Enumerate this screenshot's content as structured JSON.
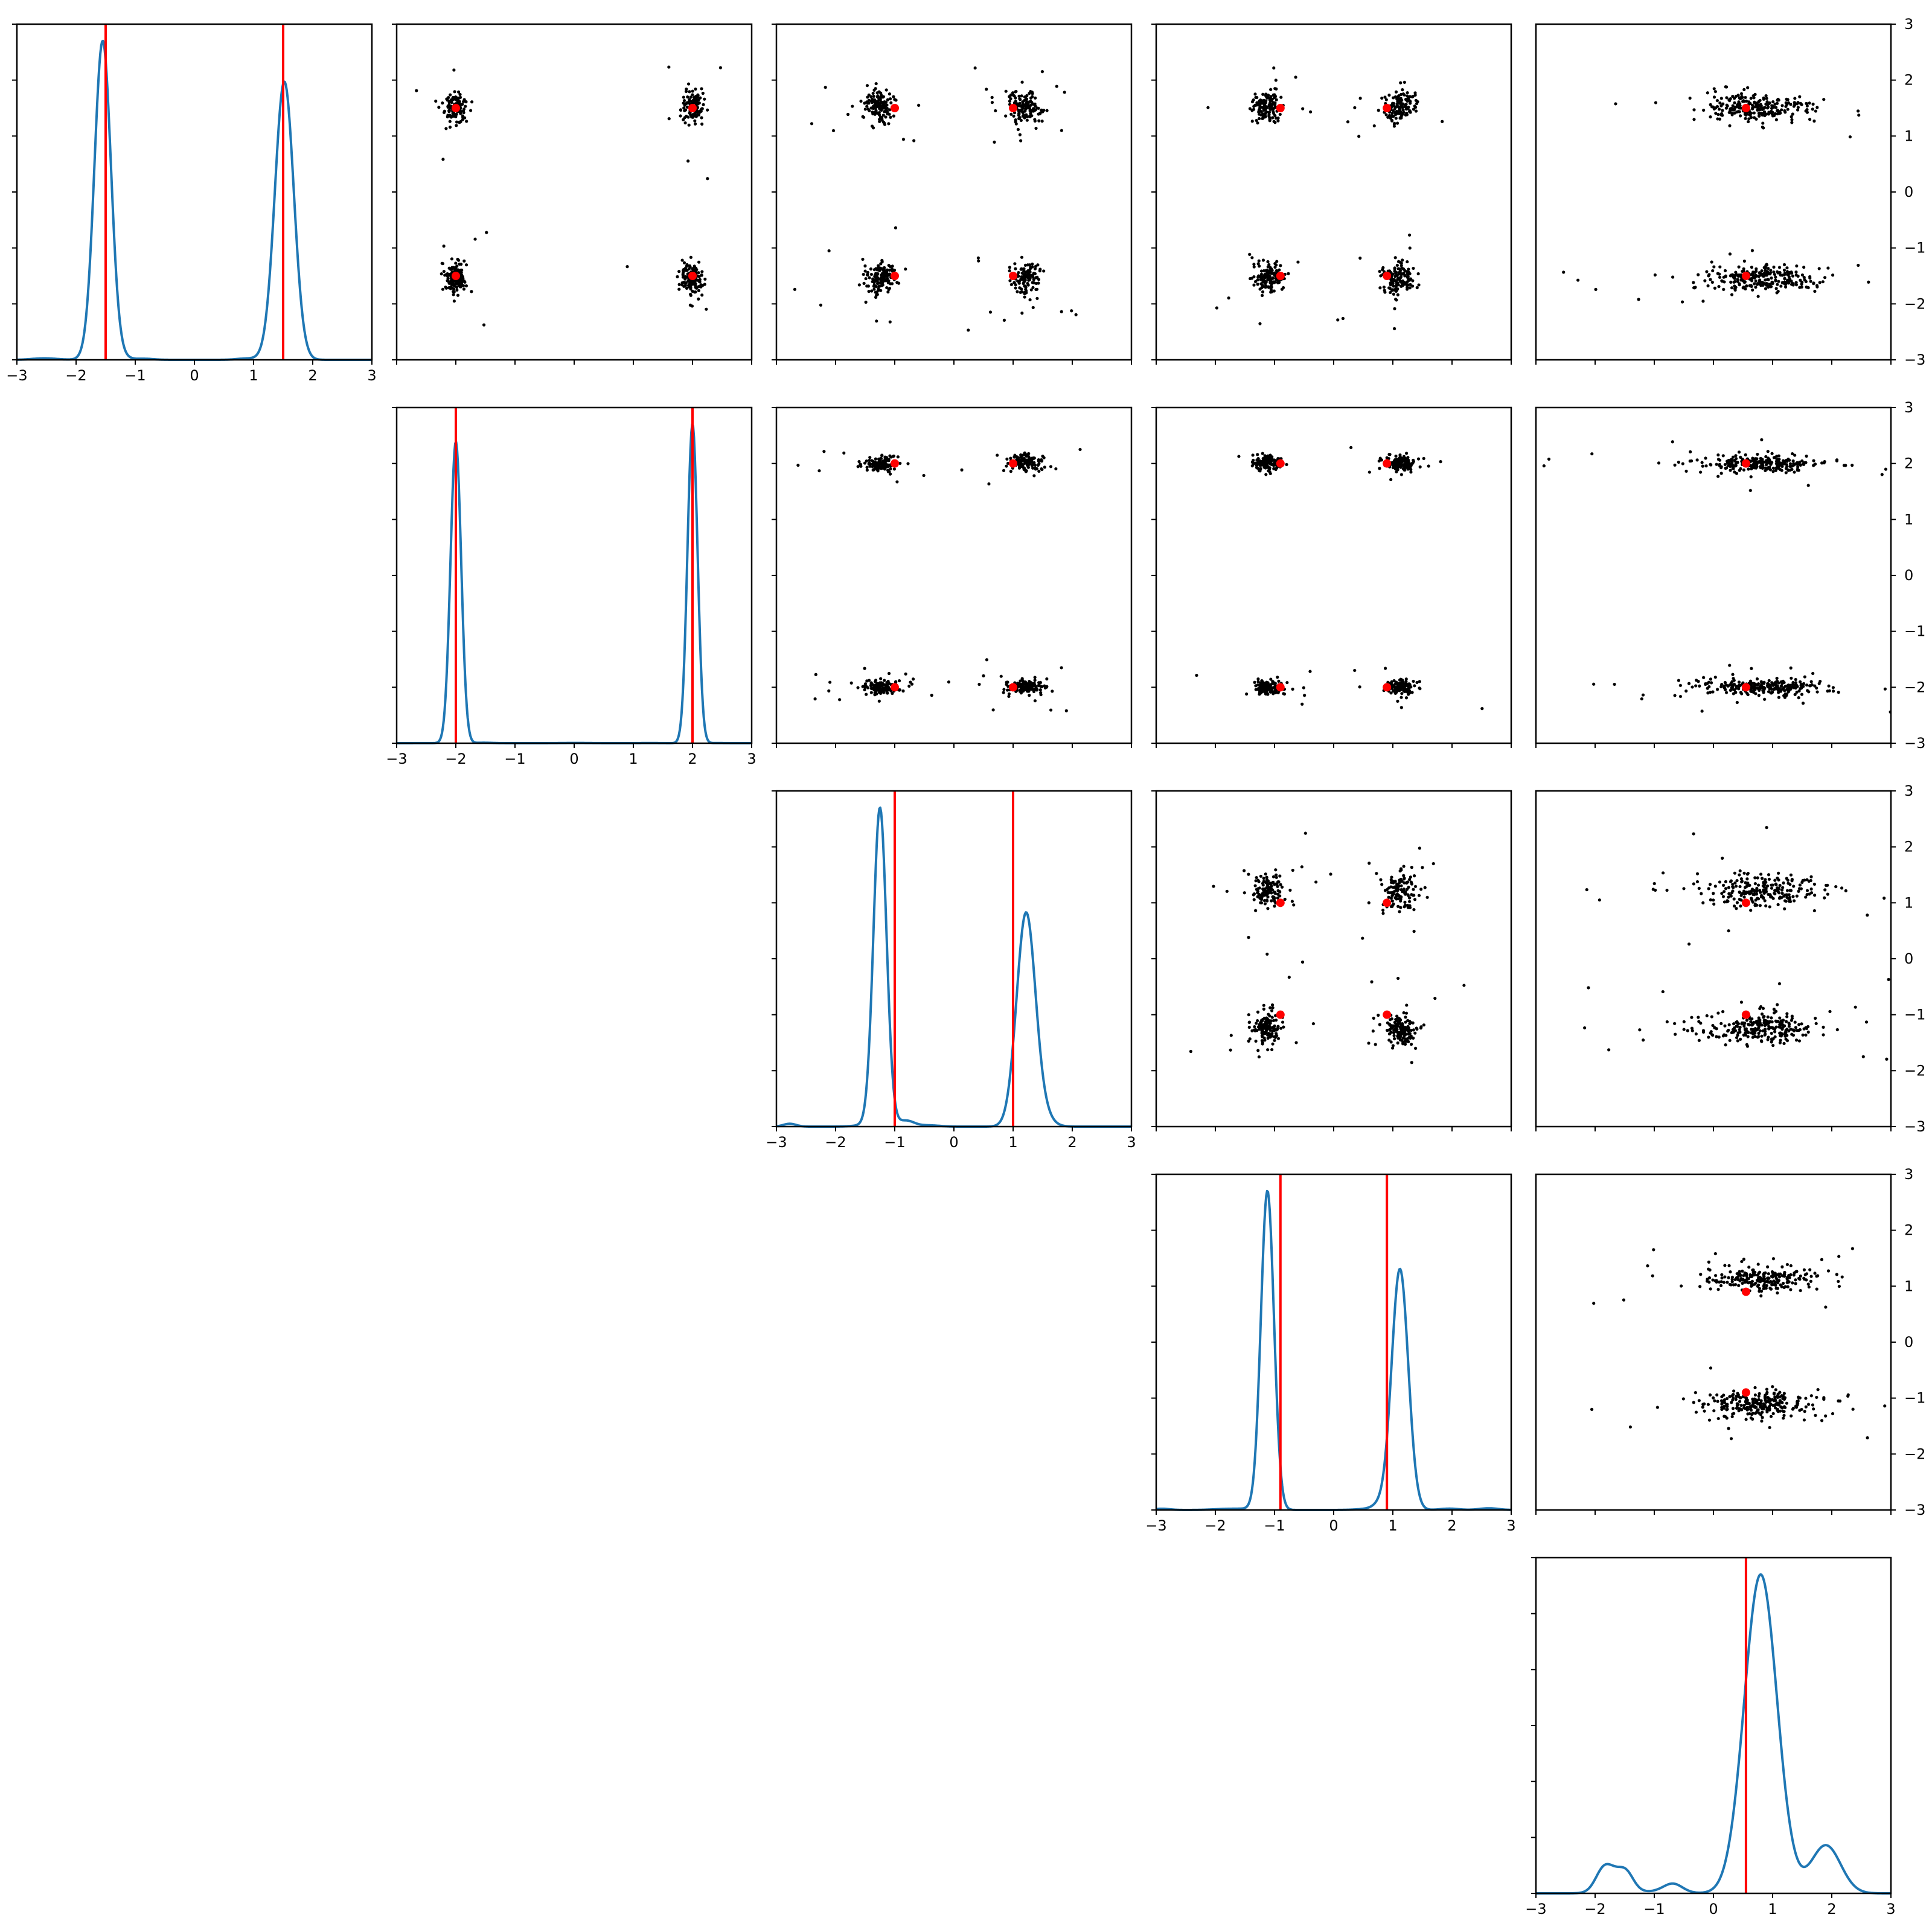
{
  "chart_data": {
    "type": "corner",
    "n_params": 5,
    "axis_range": [
      -3,
      3
    ],
    "tick_values": [
      -3,
      -2,
      -1,
      0,
      1,
      2,
      3
    ],
    "tick_labels": [
      "−3",
      "−2",
      "−1",
      "0",
      "1",
      "2",
      "3"
    ],
    "grid": false,
    "legend": "none",
    "colors": {
      "kde": "#1f77b4",
      "truth": "#ff0000",
      "samples": "#000000",
      "truth_marker": "#ff0000"
    },
    "truth": [
      [
        -1.5,
        1.5
      ],
      [
        -2.0,
        2.0
      ],
      [
        -1.0,
        1.0
      ],
      [
        -0.9,
        0.9
      ],
      [
        0.55
      ]
    ],
    "marginals": [
      {
        "param": 0,
        "modes": [
          {
            "mu": -1.55,
            "sd": 0.14,
            "w": 0.49
          },
          {
            "mu": 1.52,
            "sd": 0.16,
            "w": 0.49
          }
        ],
        "tail_scale": 0.02,
        "seed": 11
      },
      {
        "param": 1,
        "modes": [
          {
            "mu": -2.0,
            "sd": 0.09,
            "w": 0.5
          },
          {
            "mu": 2.0,
            "sd": 0.085,
            "w": 0.5
          }
        ],
        "tail_scale": 0.004,
        "seed": 23
      },
      {
        "param": 2,
        "modes": [
          {
            "mu": -1.25,
            "sd": 0.11,
            "w": 0.45
          },
          {
            "mu": 1.22,
            "sd": 0.16,
            "w": 0.44
          }
        ],
        "tail_scale": 0.06,
        "seed": 37
      },
      {
        "param": 3,
        "modes": [
          {
            "mu": -1.12,
            "sd": 0.11,
            "w": 0.48
          },
          {
            "mu": 1.12,
            "sd": 0.14,
            "w": 0.46
          }
        ],
        "tail_scale": 0.03,
        "seed": 41
      },
      {
        "param": 4,
        "modes": [
          {
            "mu": 0.8,
            "sd": 0.28,
            "w": 0.72
          },
          {
            "mu": 1.9,
            "sd": 0.25,
            "w": 0.1
          }
        ],
        "tail_scale": 0.18,
        "seed": 53
      }
    ],
    "pairs": [
      {
        "row": 0,
        "col": 1,
        "x_modes": [
          -2.0,
          2.0
        ],
        "y_modes": [
          -1.55,
          1.52
        ],
        "sx": 0.09,
        "sy": 0.14,
        "n": 560,
        "outlier_frac": 0.04,
        "seed": 101
      },
      {
        "row": 0,
        "col": 2,
        "x_modes": [
          -1.25,
          1.22
        ],
        "y_modes": [
          -1.55,
          1.52
        ],
        "sx": 0.13,
        "sy": 0.14,
        "n": 560,
        "outlier_frac": 0.1,
        "seed": 102
      },
      {
        "row": 0,
        "col": 3,
        "x_modes": [
          -1.12,
          1.12
        ],
        "y_modes": [
          -1.55,
          1.52
        ],
        "sx": 0.13,
        "sy": 0.14,
        "n": 560,
        "outlier_frac": 0.06,
        "seed": 103
      },
      {
        "row": 0,
        "col": 4,
        "x_modes": [
          0.8
        ],
        "y_modes": [
          -1.55,
          1.52
        ],
        "sx": 0.45,
        "sy": 0.12,
        "n": 520,
        "outlier_frac": 0.08,
        "seed": 104
      },
      {
        "row": 1,
        "col": 2,
        "x_modes": [
          -1.25,
          1.22
        ],
        "y_modes": [
          -2.0,
          2.0
        ],
        "sx": 0.15,
        "sy": 0.07,
        "n": 560,
        "outlier_frac": 0.08,
        "seed": 105
      },
      {
        "row": 1,
        "col": 3,
        "x_modes": [
          -1.12,
          1.12
        ],
        "y_modes": [
          -2.0,
          2.0
        ],
        "sx": 0.13,
        "sy": 0.07,
        "n": 560,
        "outlier_frac": 0.05,
        "seed": 106
      },
      {
        "row": 1,
        "col": 4,
        "x_modes": [
          0.8
        ],
        "y_modes": [
          -2.0,
          2.0
        ],
        "sx": 0.5,
        "sy": 0.07,
        "n": 520,
        "outlier_frac": 0.1,
        "seed": 107
      },
      {
        "row": 2,
        "col": 3,
        "x_modes": [
          -1.12,
          1.12
        ],
        "y_modes": [
          -1.25,
          1.22
        ],
        "sx": 0.13,
        "sy": 0.15,
        "n": 560,
        "outlier_frac": 0.08,
        "seed": 108
      },
      {
        "row": 2,
        "col": 4,
        "x_modes": [
          0.8
        ],
        "y_modes": [
          -1.25,
          1.22
        ],
        "sx": 0.5,
        "sy": 0.14,
        "n": 520,
        "outlier_frac": 0.1,
        "seed": 109
      },
      {
        "row": 3,
        "col": 4,
        "x_modes": [
          0.8
        ],
        "y_modes": [
          -1.12,
          1.12
        ],
        "sx": 0.5,
        "sy": 0.12,
        "n": 520,
        "outlier_frac": 0.1,
        "seed": 110
      }
    ]
  }
}
